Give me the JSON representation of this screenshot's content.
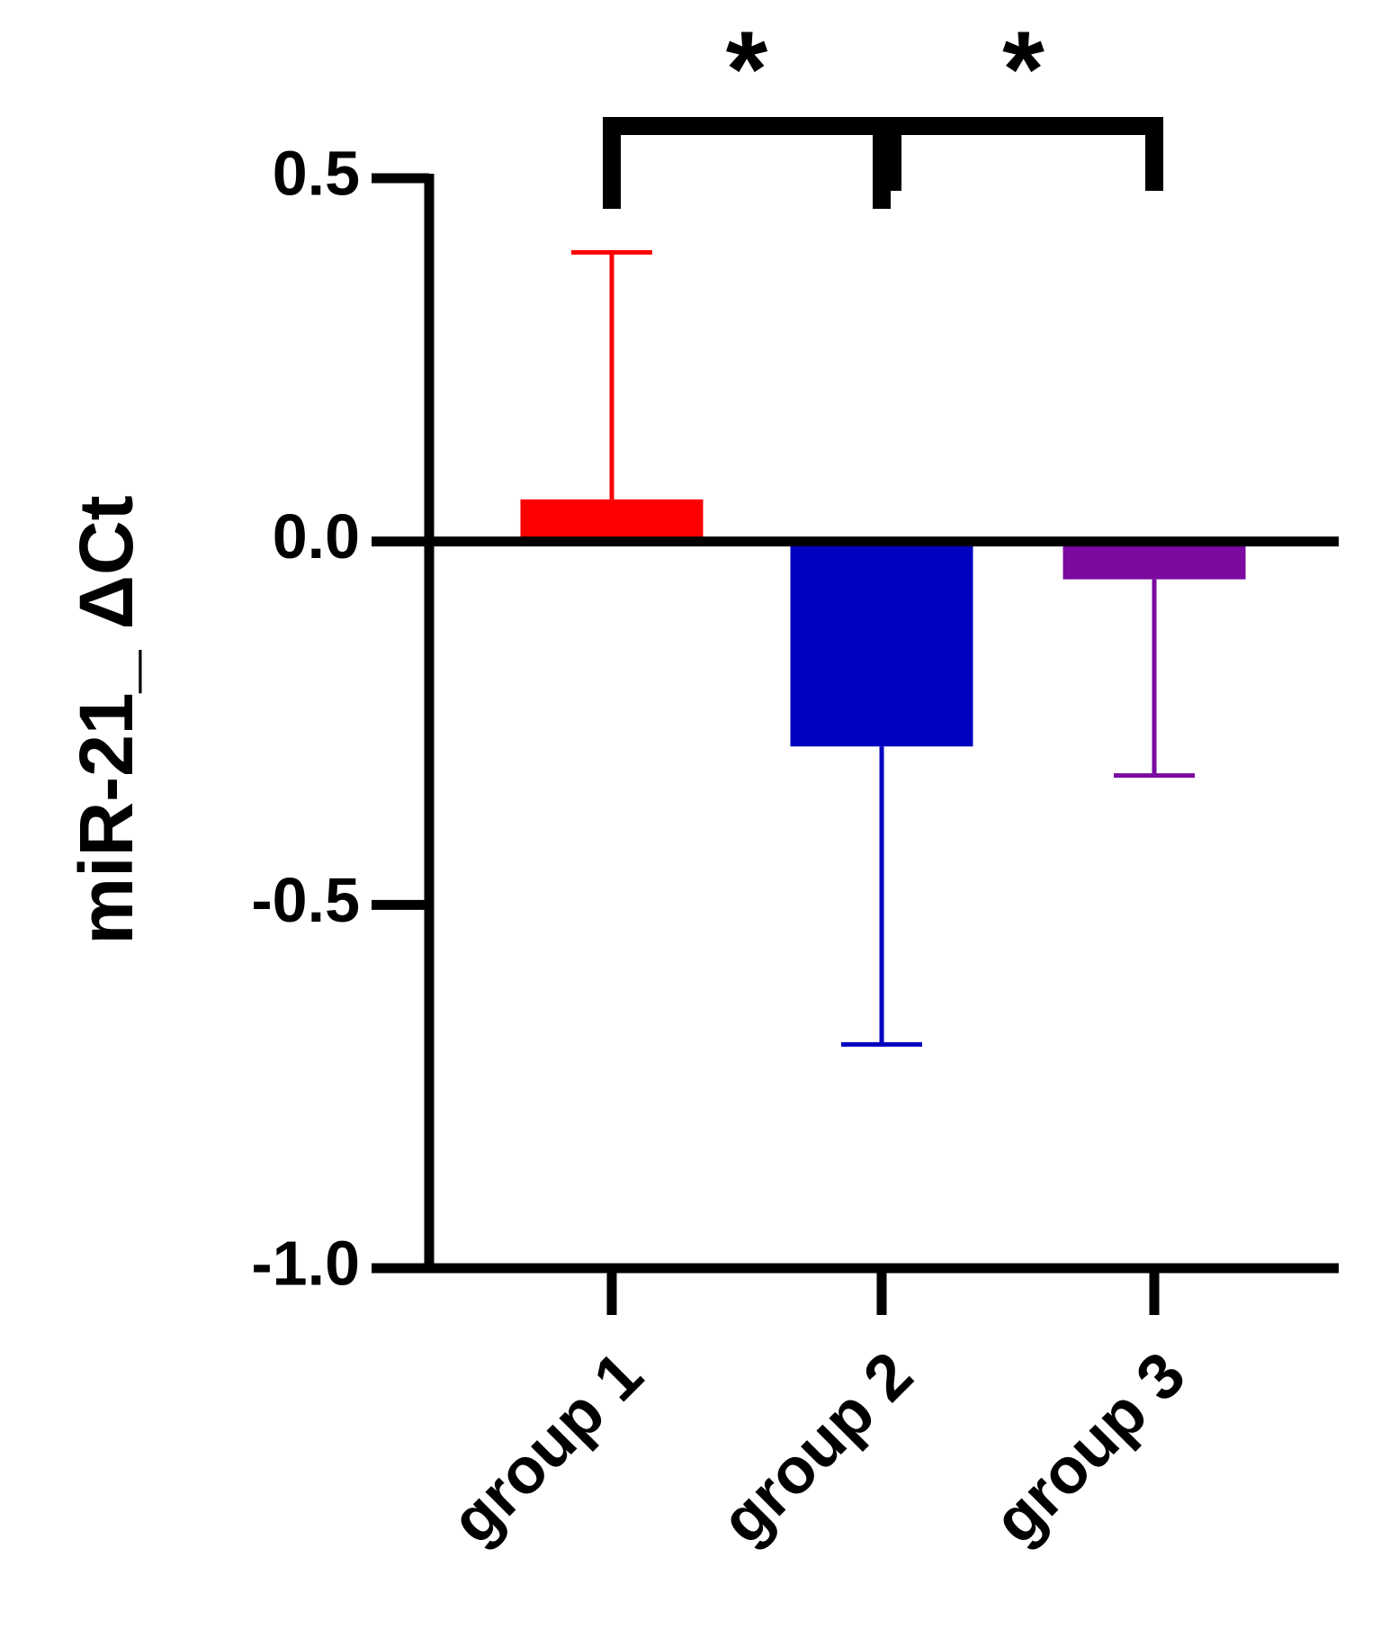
{
  "chart_data": {
    "type": "bar",
    "y_label": "miR-21_ ΔCt",
    "categories": [
      "group 1",
      "group 2",
      "group 3"
    ],
    "values": [
      0.058,
      -0.282,
      -0.052
    ],
    "errors": [
      0.34,
      0.41,
      0.27
    ],
    "colors": [
      "#ff0000",
      "#0000c0",
      "#7a0aa0"
    ],
    "ylim": [
      -1.0,
      0.5
    ],
    "yticks": [
      {
        "value": -1.0,
        "label": "-1.0"
      },
      {
        "value": -0.5,
        "label": "-0.5"
      },
      {
        "value": 0,
        "label": "0.0"
      },
      {
        "value": 0.5,
        "label": "0.5"
      }
    ],
    "annotations": [
      "*",
      "*"
    ]
  }
}
